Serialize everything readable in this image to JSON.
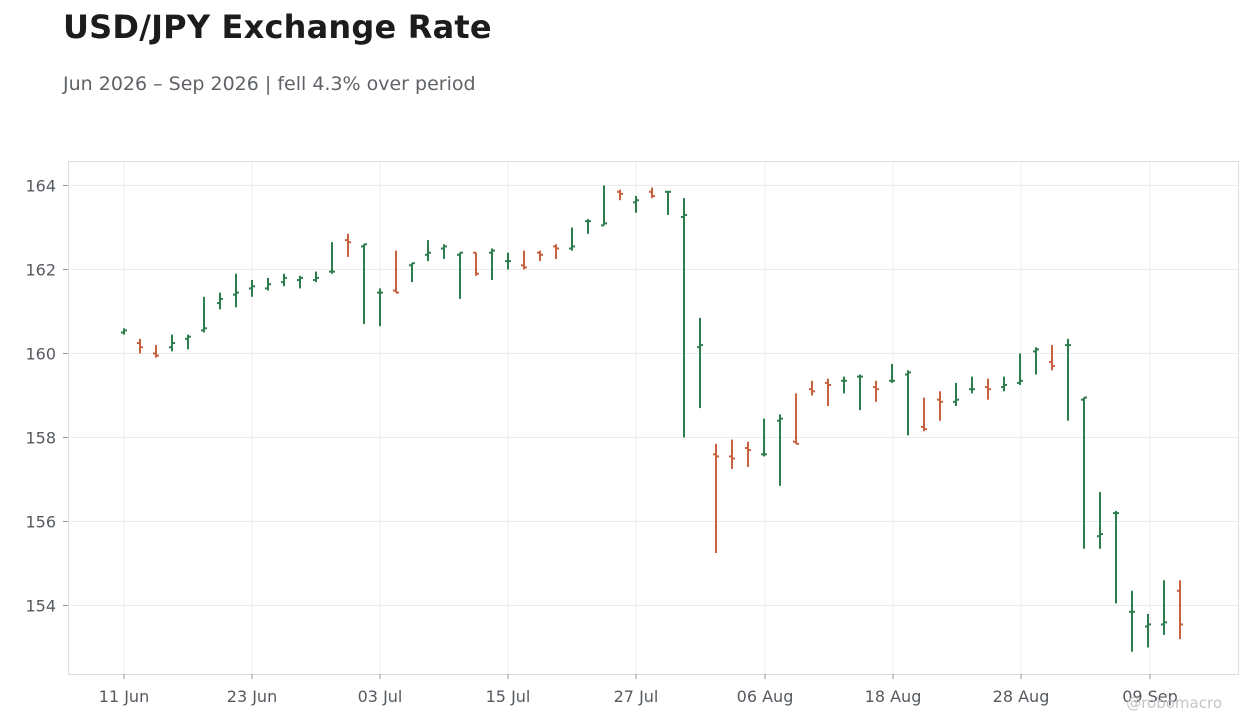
{
  "title": "USD/JPY Exchange Rate",
  "subtitle": "Jun 2026 – Sep 2026 | fell 4.3% over period",
  "watermark": "@robomacro",
  "colors": {
    "up": "#2e7d4f",
    "down": "#c8613f",
    "grid": "#ececec",
    "axis": "#dddddd",
    "text": "#555a60"
  },
  "chart_data": {
    "type": "ohlc",
    "title": "USD/JPY Exchange Rate",
    "xlabel": "",
    "ylabel": "",
    "ylim": [
      152.3,
      164.6
    ],
    "y_ticks": [
      154,
      156,
      158,
      160,
      162,
      164
    ],
    "x_ticks": [
      "11 Jun",
      "23 Jun",
      "03 Jul",
      "15 Jul",
      "27 Jul",
      "06 Aug",
      "18 Aug",
      "28 Aug",
      "09 Sep"
    ],
    "grid": true,
    "legend": "none",
    "candles": [
      {
        "x": "11 Jun",
        "open": 160.5,
        "high": 160.6,
        "low": 160.45,
        "close": 160.55
      },
      {
        "x": "12 Jun",
        "open": 160.25,
        "high": 160.35,
        "low": 160.0,
        "close": 160.15
      },
      {
        "x": "13 Jun",
        "open": 160.0,
        "high": 160.2,
        "low": 159.9,
        "close": 159.95
      },
      {
        "x": "15 Jun",
        "open": 160.15,
        "high": 160.45,
        "low": 160.05,
        "close": 160.25
      },
      {
        "x": "16 Jun",
        "open": 160.35,
        "high": 160.45,
        "low": 160.1,
        "close": 160.4
      },
      {
        "x": "17 Jun",
        "open": 160.55,
        "high": 161.35,
        "low": 160.5,
        "close": 160.6
      },
      {
        "x": "18 Jun",
        "open": 161.2,
        "high": 161.45,
        "low": 161.05,
        "close": 161.3
      },
      {
        "x": "19 Jun",
        "open": 161.4,
        "high": 161.9,
        "low": 161.1,
        "close": 161.45
      },
      {
        "x": "20 Jun",
        "open": 161.55,
        "high": 161.75,
        "low": 161.35,
        "close": 161.6
      },
      {
        "x": "22 Jun",
        "open": 161.55,
        "high": 161.8,
        "low": 161.5,
        "close": 161.65
      },
      {
        "x": "23 Jun",
        "open": 161.7,
        "high": 161.9,
        "low": 161.6,
        "close": 161.8
      },
      {
        "x": "24 Jun",
        "open": 161.75,
        "high": 161.85,
        "low": 161.55,
        "close": 161.8
      },
      {
        "x": "25 Jun",
        "open": 161.75,
        "high": 161.95,
        "low": 161.7,
        "close": 161.8
      },
      {
        "x": "26 Jun",
        "open": 161.95,
        "high": 162.65,
        "low": 161.9,
        "close": 161.95
      },
      {
        "x": "27 Jun",
        "open": 162.7,
        "high": 162.85,
        "low": 162.3,
        "close": 162.65
      },
      {
        "x": "29 Jun",
        "open": 162.55,
        "high": 162.6,
        "low": 160.7,
        "close": 162.6
      },
      {
        "x": "30 Jun",
        "open": 161.45,
        "high": 161.55,
        "low": 160.65,
        "close": 161.45
      },
      {
        "x": "01 Jul",
        "open": 161.5,
        "high": 162.45,
        "low": 161.45,
        "close": 161.45
      },
      {
        "x": "02 Jul",
        "open": 162.1,
        "high": 162.15,
        "low": 161.7,
        "close": 162.15
      },
      {
        "x": "03 Jul",
        "open": 162.35,
        "high": 162.7,
        "low": 162.2,
        "close": 162.4
      },
      {
        "x": "04 Jul",
        "open": 162.5,
        "high": 162.6,
        "low": 162.25,
        "close": 162.55
      },
      {
        "x": "06 Jul",
        "open": 162.35,
        "high": 162.4,
        "low": 161.3,
        "close": 162.4
      },
      {
        "x": "07 Jul",
        "open": 162.4,
        "high": 162.4,
        "low": 161.85,
        "close": 161.9
      },
      {
        "x": "08 Jul",
        "open": 162.4,
        "high": 162.5,
        "low": 161.75,
        "close": 162.45
      },
      {
        "x": "09 Jul",
        "open": 162.2,
        "high": 162.4,
        "low": 162.0,
        "close": 162.2
      },
      {
        "x": "10 Jul",
        "open": 162.1,
        "high": 162.45,
        "low": 162.0,
        "close": 162.05
      },
      {
        "x": "11 Jul",
        "open": 162.4,
        "high": 162.45,
        "low": 162.2,
        "close": 162.35
      },
      {
        "x": "13 Jul",
        "open": 162.55,
        "high": 162.6,
        "low": 162.25,
        "close": 162.5
      },
      {
        "x": "14 Jul",
        "open": 162.5,
        "high": 163.0,
        "low": 162.45,
        "close": 162.55
      },
      {
        "x": "15 Jul",
        "open": 163.15,
        "high": 163.2,
        "low": 162.85,
        "close": 163.15
      },
      {
        "x": "16 Jul",
        "open": 163.05,
        "high": 164.0,
        "low": 163.05,
        "close": 163.1
      },
      {
        "x": "17 Jul",
        "open": 163.85,
        "high": 163.9,
        "low": 163.65,
        "close": 163.8
      },
      {
        "x": "18 Jul",
        "open": 163.6,
        "high": 163.75,
        "low": 163.35,
        "close": 163.65
      },
      {
        "x": "20 Jul",
        "open": 163.85,
        "high": 163.95,
        "low": 163.7,
        "close": 163.75
      },
      {
        "x": "21 Jul",
        "open": 163.85,
        "high": 163.85,
        "low": 163.3,
        "close": 163.85
      },
      {
        "x": "22 Jul",
        "open": 163.25,
        "high": 163.7,
        "low": 158.0,
        "close": 163.3
      },
      {
        "x": "23 Jul",
        "open": 160.15,
        "high": 160.85,
        "low": 158.7,
        "close": 160.2
      },
      {
        "x": "24 Jul",
        "open": 157.6,
        "high": 157.85,
        "low": 155.25,
        "close": 157.55
      },
      {
        "x": "25 Jul",
        "open": 157.55,
        "high": 157.95,
        "low": 157.25,
        "close": 157.5
      },
      {
        "x": "27 Jul",
        "open": 157.75,
        "high": 157.9,
        "low": 157.3,
        "close": 157.7
      },
      {
        "x": "28 Jul",
        "open": 157.6,
        "high": 158.45,
        "low": 157.55,
        "close": 157.6
      },
      {
        "x": "29 Jul",
        "open": 158.4,
        "high": 158.55,
        "low": 156.85,
        "close": 158.45
      },
      {
        "x": "30 Jul",
        "open": 157.9,
        "high": 159.05,
        "low": 157.85,
        "close": 157.85
      },
      {
        "x": "31 Jul",
        "open": 159.15,
        "high": 159.35,
        "low": 159.0,
        "close": 159.1
      },
      {
        "x": "01 Aug",
        "open": 159.3,
        "high": 159.4,
        "low": 158.75,
        "close": 159.25
      },
      {
        "x": "03 Aug",
        "open": 159.35,
        "high": 159.45,
        "low": 159.05,
        "close": 159.35
      },
      {
        "x": "04 Aug",
        "open": 159.45,
        "high": 159.5,
        "low": 158.65,
        "close": 159.45
      },
      {
        "x": "05 Aug",
        "open": 159.2,
        "high": 159.35,
        "low": 158.85,
        "close": 159.15
      },
      {
        "x": "06 Aug",
        "open": 159.35,
        "high": 159.75,
        "low": 159.3,
        "close": 159.35
      },
      {
        "x": "07 Aug",
        "open": 159.5,
        "high": 159.6,
        "low": 158.05,
        "close": 159.55
      },
      {
        "x": "08 Aug",
        "open": 158.25,
        "high": 158.95,
        "low": 158.15,
        "close": 158.2
      },
      {
        "x": "10 Aug",
        "open": 158.9,
        "high": 159.1,
        "low": 158.4,
        "close": 158.85
      },
      {
        "x": "11 Aug",
        "open": 158.85,
        "high": 159.3,
        "low": 158.75,
        "close": 158.9
      },
      {
        "x": "12 Aug",
        "open": 159.15,
        "high": 159.45,
        "low": 159.05,
        "close": 159.15
      },
      {
        "x": "13 Aug",
        "open": 159.2,
        "high": 159.4,
        "low": 158.9,
        "close": 159.15
      },
      {
        "x": "14 Aug",
        "open": 159.2,
        "high": 159.45,
        "low": 159.1,
        "close": 159.25
      },
      {
        "x": "15 Aug",
        "open": 159.3,
        "high": 160.0,
        "low": 159.25,
        "close": 159.35
      },
      {
        "x": "17 Aug",
        "open": 160.05,
        "high": 160.15,
        "low": 159.5,
        "close": 160.1
      },
      {
        "x": "18 Aug",
        "open": 159.8,
        "high": 160.2,
        "low": 159.6,
        "close": 159.7
      },
      {
        "x": "19 Aug",
        "open": 160.2,
        "high": 160.35,
        "low": 158.4,
        "close": 160.2
      },
      {
        "x": "20 Aug",
        "open": 158.9,
        "high": 158.95,
        "low": 155.35,
        "close": 158.95
      },
      {
        "x": "21 Aug",
        "open": 155.65,
        "high": 156.7,
        "low": 155.35,
        "close": 155.7
      },
      {
        "x": "22 Aug",
        "open": 156.2,
        "high": 156.25,
        "low": 154.05,
        "close": 156.2
      },
      {
        "x": "24 Aug",
        "open": 153.85,
        "high": 154.35,
        "low": 152.9,
        "close": 153.85
      },
      {
        "x": "25 Aug",
        "open": 153.5,
        "high": 153.8,
        "low": 153.0,
        "close": 153.55
      },
      {
        "x": "26 Aug",
        "open": 153.55,
        "high": 154.6,
        "low": 153.3,
        "close": 153.6
      },
      {
        "x": "27 Aug",
        "open": 154.35,
        "high": 154.6,
        "low": 153.2,
        "close": 153.55
      }
    ]
  }
}
